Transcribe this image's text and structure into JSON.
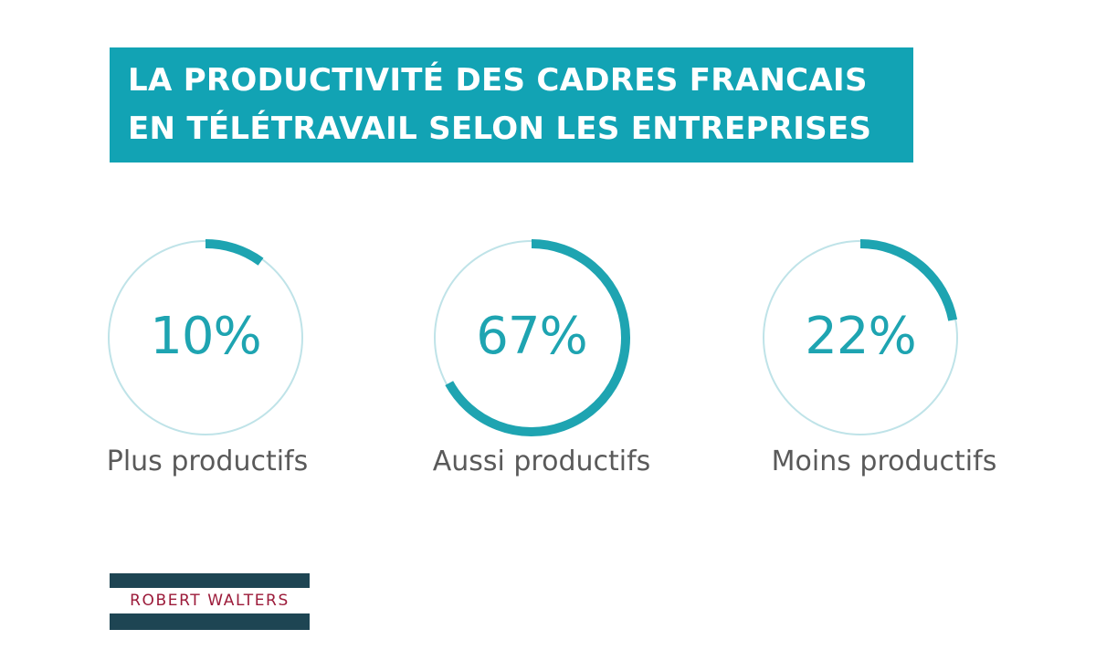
{
  "header": {
    "title_line1": "LA PRODUCTIVITÉ DES CADRES FRANCAIS",
    "title_line2": "EN TÉLÉTRAVAIL SELON LES ENTREPRISES"
  },
  "colors": {
    "accent": "#12a3b4",
    "ring_track": "#bfe3e8",
    "ring_fill": "#1ea4b1",
    "label_text": "#5a5a5a",
    "logo_dark": "#1e4553",
    "logo_red": "#9c1b3a"
  },
  "chart_data": {
    "type": "pie",
    "title": "LA PRODUCTIVITÉ DES CADRES FRANCAIS EN TÉLÉTRAVAIL SELON LES ENTREPRISES",
    "categories": [
      "Plus productifs",
      "Aussi productifs",
      "Moins productifs"
    ],
    "values": [
      10,
      67,
      22
    ],
    "unit": "%",
    "value_labels": [
      "10%",
      "67%",
      "22%"
    ]
  },
  "logo": {
    "text": "ROBERT WALTERS"
  }
}
